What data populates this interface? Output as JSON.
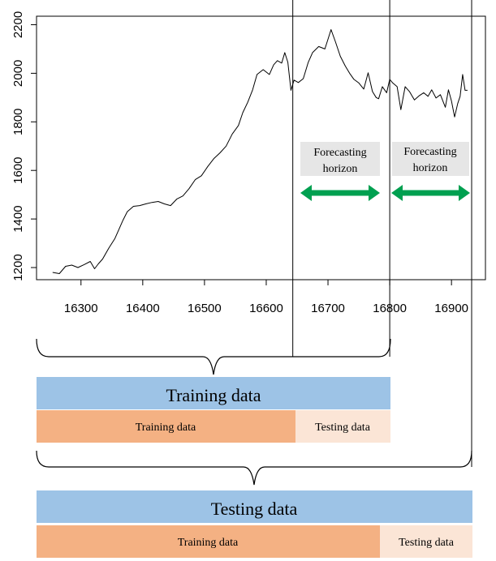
{
  "chart_data": {
    "type": "line",
    "title": "",
    "xlabel": "",
    "ylabel": "",
    "xlim": [
      16228,
      16955
    ],
    "ylim": [
      1150,
      2235
    ],
    "x_ticks": [
      16300,
      16400,
      16500,
      16600,
      16700,
      16800,
      16900
    ],
    "y_ticks": [
      1200,
      1400,
      1600,
      1800,
      2000,
      2200
    ],
    "grid": false,
    "vertical_lines_x": [
      16643,
      16800,
      16958
    ],
    "series": [
      {
        "name": "",
        "x": [
          16254,
          16265,
          16275,
          16285,
          16295,
          16305,
          16315,
          16322,
          16328,
          16335,
          16345,
          16355,
          16362,
          16368,
          16375,
          16385,
          16395,
          16405,
          16415,
          16425,
          16435,
          16445,
          16455,
          16465,
          16475,
          16485,
          16495,
          16505,
          16515,
          16525,
          16535,
          16545,
          16555,
          16562,
          16570,
          16578,
          16585,
          16595,
          16605,
          16612,
          16618,
          16625,
          16630,
          16635,
          16640,
          16645,
          16652,
          16660,
          16668,
          16675,
          16685,
          16695,
          16700,
          16705,
          16712,
          16720,
          16728,
          16735,
          16742,
          16750,
          16758,
          16765,
          16772,
          16778,
          16782,
          16788,
          16795,
          16800,
          16805,
          16812,
          16818,
          16825,
          16832,
          16840,
          16848,
          16855,
          16862,
          16868,
          16875,
          16882,
          16890,
          16895,
          16900,
          16905,
          16910,
          16914,
          16918,
          16922,
          16926
        ],
        "values": [
          1180,
          1175,
          1205,
          1210,
          1200,
          1212,
          1225,
          1195,
          1215,
          1235,
          1280,
          1320,
          1360,
          1395,
          1430,
          1452,
          1455,
          1462,
          1468,
          1472,
          1462,
          1455,
          1482,
          1495,
          1525,
          1562,
          1578,
          1615,
          1648,
          1672,
          1700,
          1750,
          1785,
          1838,
          1880,
          1932,
          1995,
          2015,
          1995,
          2035,
          2052,
          2042,
          2085,
          2045,
          1930,
          1972,
          1962,
          1978,
          2045,
          2085,
          2110,
          2100,
          2140,
          2180,
          2130,
          2070,
          2030,
          2000,
          1975,
          1960,
          1935,
          2002,
          1925,
          1900,
          1895,
          1945,
          1920,
          1975,
          1960,
          1945,
          1850,
          1945,
          1925,
          1890,
          1908,
          1920,
          1905,
          1932,
          1898,
          1912,
          1860,
          1932,
          1885,
          1820,
          1875,
          1905,
          1995,
          1930,
          1930
        ]
      }
    ],
    "annotations": [
      {
        "text_lines": [
          "Forecasting",
          "horizon"
        ],
        "x_range": [
          16643,
          16800
        ]
      },
      {
        "text_lines": [
          "Forecasting",
          "horizon"
        ],
        "x_range": [
          16800,
          16958
        ]
      }
    ]
  },
  "schema": {
    "row1": {
      "header": "Training data",
      "left": "Training data",
      "right": "Testing data",
      "colors": {
        "header": "#9dc3e6",
        "left": "#f4b183",
        "right": "#fbe5d6"
      }
    },
    "row2": {
      "header": "Testing data",
      "left": "Training data",
      "right": "Testing data",
      "colors": {
        "header": "#9dc3e6",
        "left": "#f4b183",
        "right": "#fbe5d6"
      }
    }
  },
  "colors": {
    "arrow": "#00a050",
    "annotation_bg": "#e6e6e6",
    "line": "#000000"
  }
}
